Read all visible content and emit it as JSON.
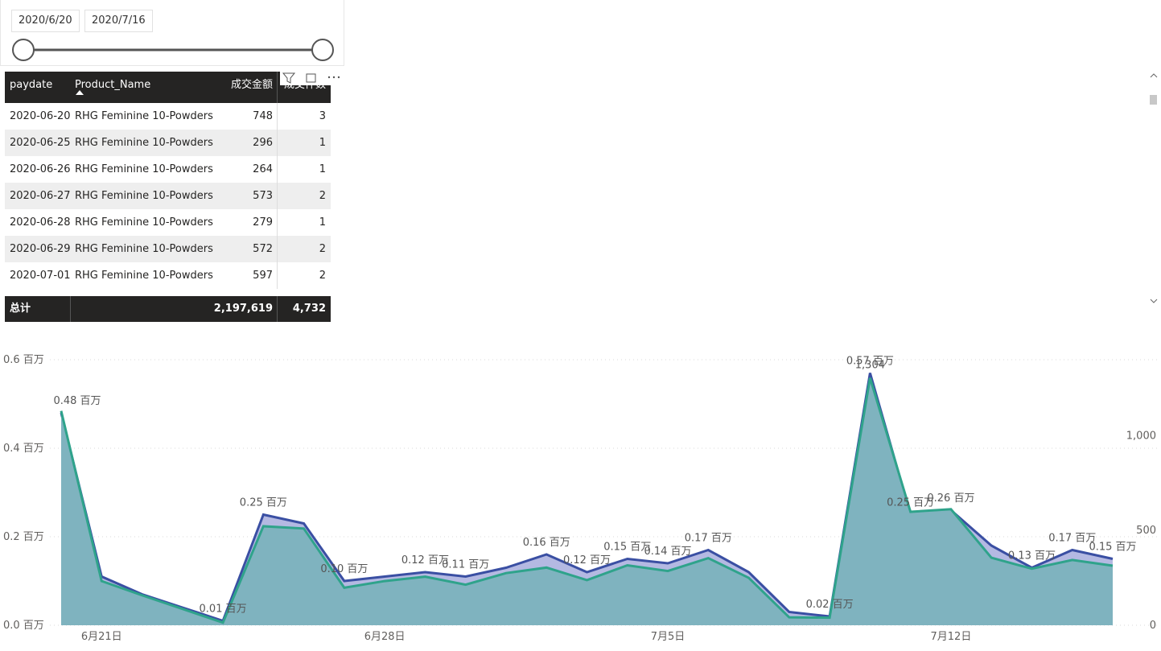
{
  "slicer": {
    "start": "2020/6/20",
    "end": "2020/7/16"
  },
  "table": {
    "columns": [
      "paydate",
      "Product_Name",
      "成交金额",
      "成交件数"
    ],
    "rows": [
      [
        "2020-06-20",
        "RHG Feminine 10-Powders",
        "748",
        "3"
      ],
      [
        "2020-06-25",
        "RHG Feminine 10-Powders",
        "296",
        "1"
      ],
      [
        "2020-06-26",
        "RHG Feminine 10-Powders",
        "264",
        "1"
      ],
      [
        "2020-06-27",
        "RHG Feminine 10-Powders",
        "573",
        "2"
      ],
      [
        "2020-06-28",
        "RHG Feminine 10-Powders",
        "279",
        "1"
      ],
      [
        "2020-06-29",
        "RHG Feminine 10-Powders",
        "572",
        "2"
      ],
      [
        "2020-07-01",
        "RHG Feminine 10-Powders",
        "597",
        "2"
      ]
    ],
    "total": [
      "总计",
      "2,197,619",
      "4,732"
    ]
  },
  "chart_data": {
    "type": "area",
    "categories": [
      null,
      "6月21日",
      null,
      null,
      null,
      null,
      null,
      null,
      "6月28日",
      null,
      null,
      null,
      null,
      null,
      null,
      "7月5日",
      null,
      null,
      null,
      null,
      null,
      null,
      "7月12日",
      null,
      null,
      null,
      null
    ],
    "series": [
      {
        "color": "#3a4fa3",
        "fill": "#b4b9e2",
        "values": [
          0.48,
          0.11,
          0.07,
          0.04,
          0.01,
          0.25,
          0.23,
          0.1,
          0.11,
          0.12,
          0.11,
          0.13,
          0.16,
          0.12,
          0.15,
          0.14,
          0.17,
          0.12,
          0.03,
          0.02,
          0.57,
          0.25,
          0.26,
          0.18,
          0.13,
          0.17,
          0.15
        ],
        "value_labels": [
          "0.48 百万",
          null,
          null,
          null,
          "0.01 百万",
          "0.25 百万",
          null,
          "0.10 百万",
          null,
          "0.12 百万",
          "0.11 百万",
          null,
          "0.16 百万",
          "0.12 百万",
          "0.15 百万",
          "0.14 百万",
          "0.17 百万",
          null,
          null,
          "0.02 百万",
          "0.57 百万",
          "0.25 百万",
          "0.26 百万",
          null,
          "0.13 百万",
          "0.17 百万",
          "0.15 百万"
        ]
      },
      {
        "color": "#2fa38b",
        "fill": "#7fb3bf",
        "axis": "y2",
        "values": [
          1130,
          233,
          158,
          86,
          14,
          522,
          510,
          198,
          233,
          256,
          214,
          275,
          304,
          238,
          316,
          286,
          354,
          250,
          42,
          40,
          1304,
          598,
          612,
          356,
          298,
          344,
          314
        ],
        "value_labels": [
          null,
          null,
          null,
          null,
          null,
          null,
          null,
          null,
          null,
          null,
          null,
          null,
          null,
          null,
          null,
          null,
          null,
          null,
          null,
          null,
          "1,304",
          null,
          null,
          null,
          null,
          null,
          null
        ]
      }
    ],
    "ylim": [
      0,
      0.6
    ],
    "yticks": [
      {
        "value": 0,
        "label": "0.0 百万"
      },
      {
        "value": 0.2,
        "label": "0.2 百万"
      },
      {
        "value": 0.4,
        "label": "0.4 百万"
      },
      {
        "value": 0.6,
        "label": "0.6 百万"
      }
    ],
    "y2lim": [
      0,
      1400
    ],
    "y2ticks": [
      0,
      500,
      {
        "value": 1000,
        "label": "1,000"
      }
    ],
    "grid": true
  }
}
